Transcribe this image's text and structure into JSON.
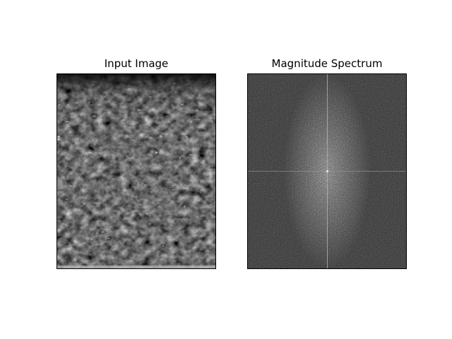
{
  "chart_data": [
    {
      "type": "heatmap",
      "title": "Input Image",
      "colormap": "gray",
      "xlabel": "",
      "ylabel": "",
      "ticks": "hidden",
      "content": "grayscale texture image"
    },
    {
      "type": "heatmap",
      "title": "Magnitude Spectrum",
      "colormap": "gray",
      "xlabel": "",
      "ylabel": "",
      "ticks": "hidden",
      "content": "2D Fourier magnitude spectrum (log-scaled, centered)"
    }
  ]
}
